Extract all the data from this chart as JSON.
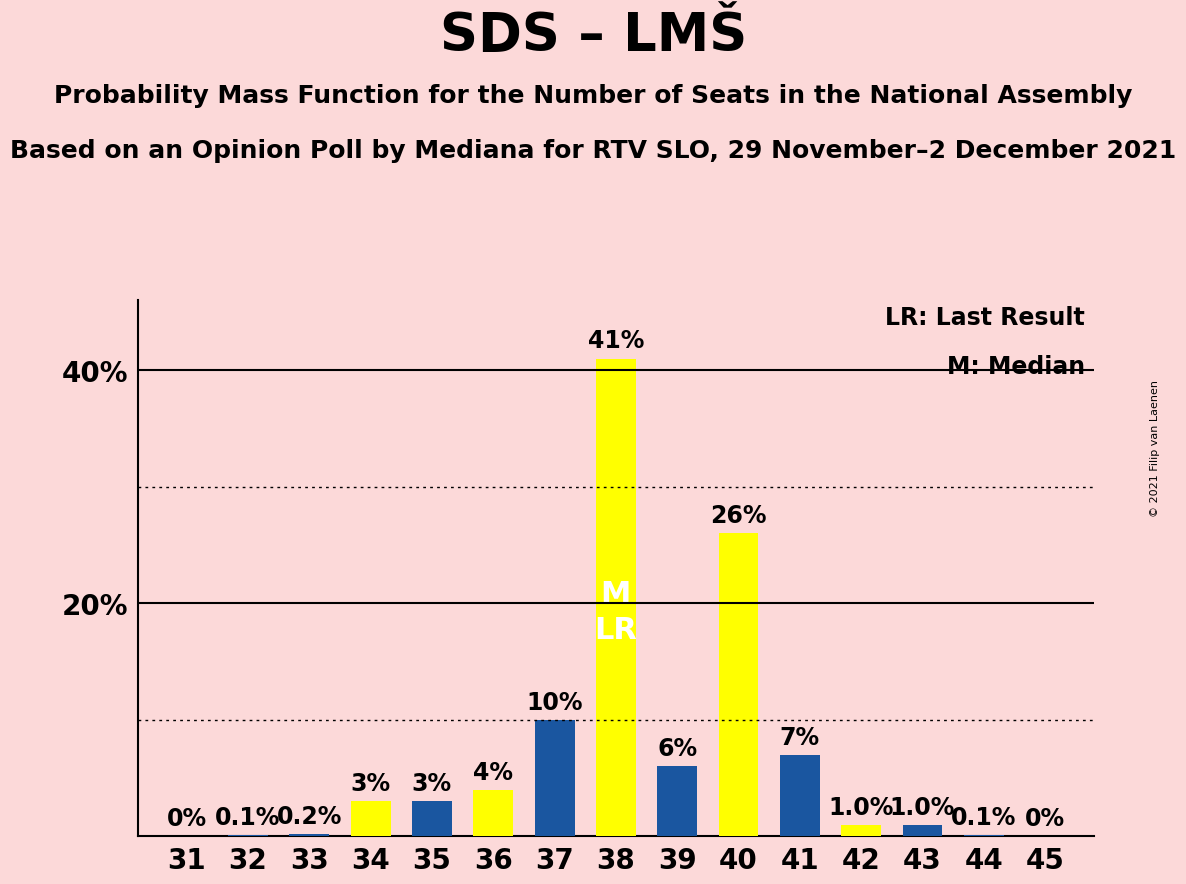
{
  "title": "SDS – LMŠ",
  "subtitle1": "Probability Mass Function for the Number of Seats in the National Assembly",
  "subtitle2": "Based on an Opinion Poll by Mediana for RTV SLO, 29 November–2 December 2021",
  "copyright": "© 2021 Filip van Laenen",
  "seats": [
    31,
    32,
    33,
    34,
    35,
    36,
    37,
    38,
    39,
    40,
    41,
    42,
    43,
    44,
    45
  ],
  "values": [
    0.0,
    0.1,
    0.2,
    3.0,
    3.0,
    4.0,
    10.0,
    41.0,
    6.0,
    26.0,
    7.0,
    1.0,
    1.0,
    0.1,
    0.0
  ],
  "colors": [
    "#1a56a0",
    "#1a56a0",
    "#1a56a0",
    "#ffff00",
    "#1a56a0",
    "#ffff00",
    "#1a56a0",
    "#ffff00",
    "#1a56a0",
    "#ffff00",
    "#1a56a0",
    "#ffff00",
    "#1a56a0",
    "#1a56a0",
    "#1a56a0"
  ],
  "labels": [
    "0%",
    "0.1%",
    "0.2%",
    "3%",
    "3%",
    "4%",
    "10%",
    "41%",
    "6%",
    "26%",
    "7%",
    "1.0%",
    "1.0%",
    "0.1%",
    "0%"
  ],
  "median_seat": 38,
  "last_result_seat": 38,
  "background_color": "#fcd9d9",
  "bar_color_yellow": "#ffff00",
  "bar_color_blue": "#1a56a0",
  "legend_text1": "LR: Last Result",
  "legend_text2": "M: Median",
  "title_fontsize": 38,
  "subtitle_fontsize": 18,
  "tick_fontsize": 20,
  "bar_label_fontsize": 17,
  "ytick_label_fontsize": 20,
  "legend_fontsize": 17,
  "mlr_fontsize": 22,
  "copyright_fontsize": 8
}
